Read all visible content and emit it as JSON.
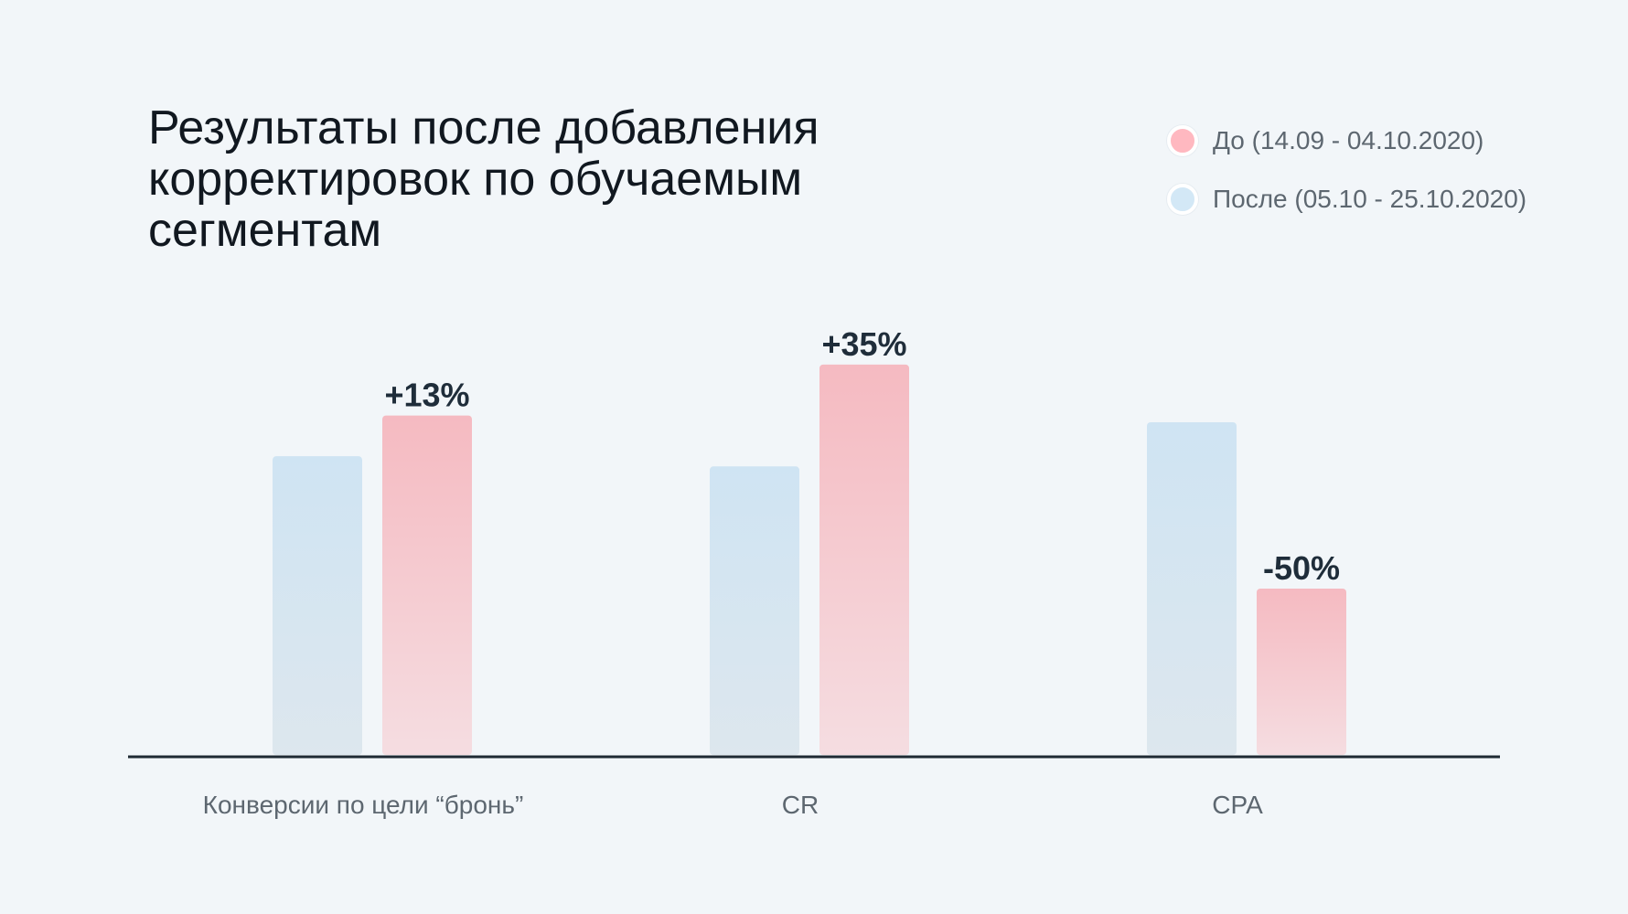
{
  "chart_data": {
    "type": "bar",
    "title": "Результаты после добавления корректировок по обучаемым сегментам",
    "categories": [
      "Конверсии по цели “бронь”",
      "CR",
      "CPA"
    ],
    "series": [
      {
        "name": "После (05.10 - 25.10.2020)",
        "color": "#cfe4f3",
        "values": [
          88,
          85,
          98
        ]
      },
      {
        "name": "До (14.09 - 04.10.2020)",
        "color": "#f6bcc3",
        "values": [
          100,
          115,
          49
        ]
      }
    ],
    "data_labels": [
      "+13%",
      "+35%",
      "-50%"
    ],
    "legend": [
      {
        "label": "До (14.09 - 04.10.2020)",
        "color": "#ffb8c0"
      },
      {
        "label": "После (05.10 - 25.10.2020)",
        "color": "#d3e8f6"
      }
    ],
    "legend_position": "top-right",
    "ylim": [
      0,
      140
    ],
    "grid": false
  }
}
